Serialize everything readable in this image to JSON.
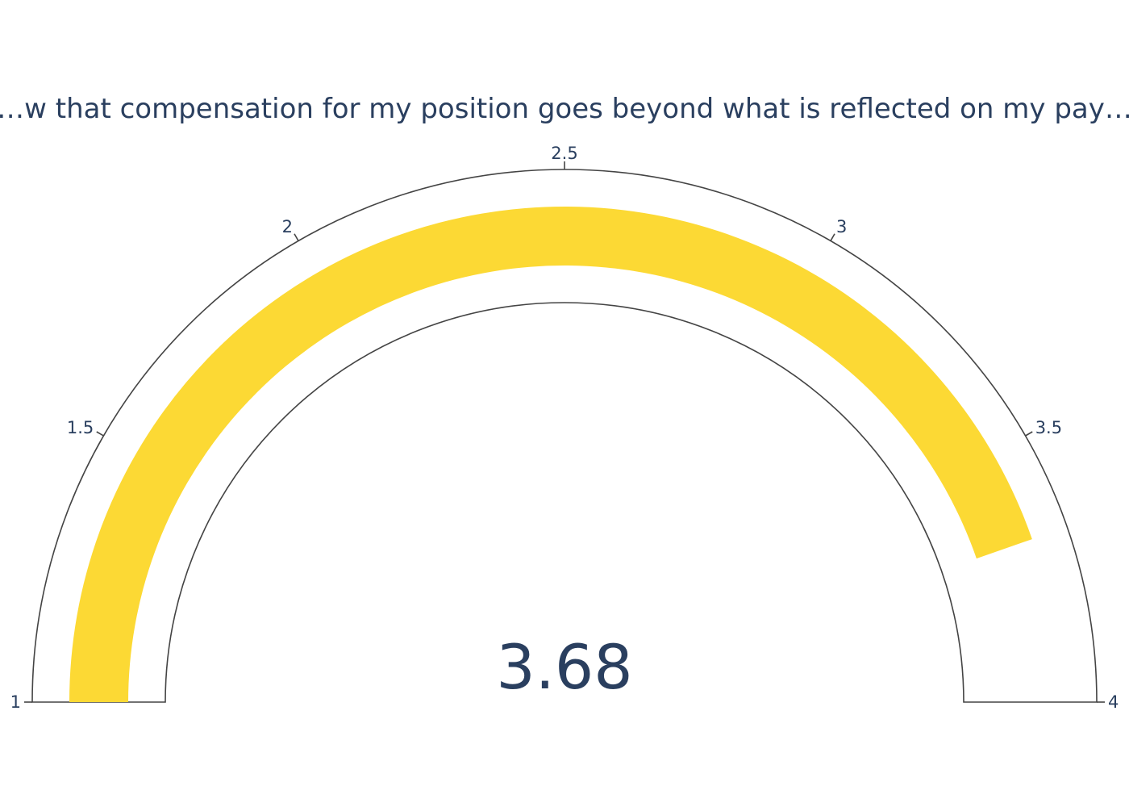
{
  "chart_data": {
    "type": "gauge",
    "title": "…w that compensation for my position goes beyond what is reflected on my pay…",
    "value": 3.68,
    "value_label": "3.68",
    "range": [
      1,
      4
    ],
    "ticks": [
      1,
      1.5,
      2,
      2.5,
      3,
      3.5,
      4
    ],
    "tick_labels": [
      "1",
      "1.5",
      "2",
      "2.5",
      "3",
      "3.5",
      "4"
    ],
    "bar_color": "#fcd934",
    "axis_color": "#444444",
    "text_color": "#2a3f5f"
  }
}
